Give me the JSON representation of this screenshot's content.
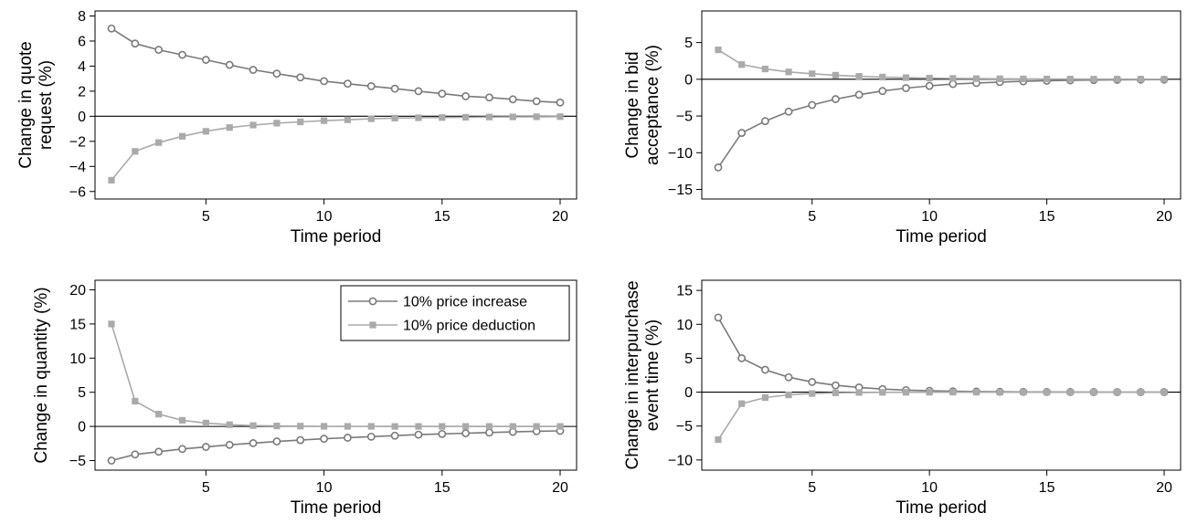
{
  "colors": {
    "increase": "#7a7a7a",
    "deduction": "#aaaaaa",
    "axis": "#000000",
    "background": "#ffffff"
  },
  "legend": {
    "items": [
      {
        "label": "10% price increase",
        "marker": "circle"
      },
      {
        "label": "10% price deduction",
        "marker": "square"
      }
    ]
  },
  "chart_data": [
    {
      "type": "line",
      "xlabel": "Time period",
      "ylabel_lines": [
        "Change in quote",
        "request (%)"
      ],
      "xlim": [
        1,
        20
      ],
      "ylim": [
        -6.6,
        8.4
      ],
      "xticks": [
        5,
        10,
        15,
        20
      ],
      "yticks": [
        -6,
        -4,
        -2,
        0,
        2,
        4,
        6,
        8
      ],
      "zero_line": true,
      "x": [
        1,
        2,
        3,
        4,
        5,
        6,
        7,
        8,
        9,
        10,
        11,
        12,
        13,
        14,
        15,
        16,
        17,
        18,
        19,
        20
      ],
      "series": [
        {
          "key": "increase",
          "marker": "circle",
          "values": [
            7.0,
            5.8,
            5.3,
            4.9,
            4.5,
            4.1,
            3.7,
            3.4,
            3.1,
            2.8,
            2.6,
            2.4,
            2.2,
            2.0,
            1.8,
            1.6,
            1.5,
            1.35,
            1.2,
            1.1
          ]
        },
        {
          "key": "deduction",
          "marker": "square",
          "values": [
            -5.1,
            -2.8,
            -2.1,
            -1.6,
            -1.2,
            -0.9,
            -0.7,
            -0.55,
            -0.45,
            -0.35,
            -0.28,
            -0.2,
            -0.15,
            -0.12,
            -0.1,
            -0.08,
            -0.06,
            -0.05,
            -0.04,
            -0.03
          ]
        }
      ],
      "legend": false
    },
    {
      "type": "line",
      "xlabel": "Time period",
      "ylabel_lines": [
        "Change in bid",
        "acceptance (%)"
      ],
      "xlim": [
        1,
        20
      ],
      "ylim": [
        -16.3,
        9.3
      ],
      "xticks": [
        5,
        10,
        15,
        20
      ],
      "yticks": [
        -15,
        -10,
        -5,
        0,
        5
      ],
      "zero_line": true,
      "x": [
        1,
        2,
        3,
        4,
        5,
        6,
        7,
        8,
        9,
        10,
        11,
        12,
        13,
        14,
        15,
        16,
        17,
        18,
        19,
        20
      ],
      "series": [
        {
          "key": "increase",
          "marker": "circle",
          "values": [
            -12.0,
            -7.3,
            -5.7,
            -4.4,
            -3.5,
            -2.7,
            -2.1,
            -1.6,
            -1.2,
            -0.9,
            -0.65,
            -0.5,
            -0.38,
            -0.28,
            -0.2,
            -0.15,
            -0.11,
            -0.08,
            -0.06,
            -0.05
          ]
        },
        {
          "key": "deduction",
          "marker": "square",
          "values": [
            4.0,
            2.0,
            1.4,
            1.0,
            0.75,
            0.55,
            0.4,
            0.3,
            0.22,
            0.16,
            0.12,
            0.09,
            0.07,
            0.05,
            0.04,
            0.03,
            0.02,
            0.015,
            0.01,
            0.01
          ]
        }
      ],
      "legend": false
    },
    {
      "type": "line",
      "xlabel": "Time period",
      "ylabel_lines": [
        "Change in quantity (%)"
      ],
      "xlim": [
        1,
        20
      ],
      "ylim": [
        -6.4,
        21.4
      ],
      "xticks": [
        5,
        10,
        15,
        20
      ],
      "yticks": [
        -5,
        0,
        5,
        10,
        15,
        20
      ],
      "zero_line": true,
      "x": [
        1,
        2,
        3,
        4,
        5,
        6,
        7,
        8,
        9,
        10,
        11,
        12,
        13,
        14,
        15,
        16,
        17,
        18,
        19,
        20
      ],
      "series": [
        {
          "key": "increase",
          "marker": "circle",
          "values": [
            -5.0,
            -4.1,
            -3.7,
            -3.3,
            -3.0,
            -2.7,
            -2.45,
            -2.2,
            -2.0,
            -1.8,
            -1.65,
            -1.5,
            -1.35,
            -1.2,
            -1.1,
            -1.0,
            -0.9,
            -0.8,
            -0.7,
            -0.65
          ]
        },
        {
          "key": "deduction",
          "marker": "square",
          "values": [
            15.0,
            3.7,
            1.8,
            0.9,
            0.5,
            0.25,
            0.12,
            0.07,
            0.04,
            0.02,
            0.01,
            0.01,
            0.0,
            0.0,
            0.0,
            0.0,
            0.0,
            0.0,
            0.0,
            0.0
          ]
        }
      ],
      "legend": true,
      "legend_position": "top-right"
    },
    {
      "type": "line",
      "xlabel": "Time period",
      "ylabel_lines": [
        "Change in interpurchase",
        "event time (%)"
      ],
      "xlim": [
        1,
        20
      ],
      "ylim": [
        -11.5,
        16.5
      ],
      "xticks": [
        5,
        10,
        15,
        20
      ],
      "yticks": [
        -10,
        -5,
        0,
        5,
        10,
        15
      ],
      "zero_line": true,
      "x": [
        1,
        2,
        3,
        4,
        5,
        6,
        7,
        8,
        9,
        10,
        11,
        12,
        13,
        14,
        15,
        16,
        17,
        18,
        19,
        20
      ],
      "series": [
        {
          "key": "increase",
          "marker": "circle",
          "values": [
            11.0,
            5.0,
            3.3,
            2.2,
            1.5,
            1.0,
            0.7,
            0.45,
            0.3,
            0.2,
            0.13,
            0.09,
            0.06,
            0.04,
            0.03,
            0.02,
            0.015,
            0.01,
            0.01,
            0.01
          ]
        },
        {
          "key": "deduction",
          "marker": "square",
          "values": [
            -7.0,
            -1.7,
            -0.8,
            -0.4,
            -0.2,
            -0.1,
            -0.05,
            -0.03,
            -0.02,
            -0.01,
            0.0,
            0.0,
            0.0,
            0.0,
            0.0,
            0.0,
            0.0,
            0.0,
            0.0,
            0.0
          ]
        }
      ],
      "legend": false
    }
  ]
}
